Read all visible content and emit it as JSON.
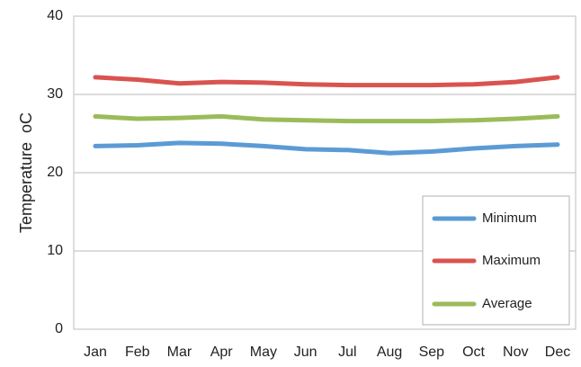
{
  "chart_data": {
    "type": "line",
    "xlabel": "",
    "ylabel": "Temperature",
    "ylabel_unit": "oC",
    "categories": [
      "Jan",
      "Feb",
      "Mar",
      "Apr",
      "May",
      "Jun",
      "Jul",
      "Aug",
      "Sep",
      "Oct",
      "Nov",
      "Dec"
    ],
    "ylim": [
      0,
      40
    ],
    "yticks": [
      "0",
      "10",
      "20",
      "30",
      "40"
    ],
    "grid": {
      "horizontal": true,
      "vertical": false
    },
    "legend_position": "bottom-right",
    "series": [
      {
        "name": "Minimum",
        "color": "#5b9bd5",
        "values": [
          23.4,
          23.5,
          23.8,
          23.7,
          23.4,
          23.0,
          22.9,
          22.5,
          22.7,
          23.1,
          23.4,
          23.6
        ]
      },
      {
        "name": "Maximum",
        "color": "#d9534f",
        "values": [
          32.2,
          31.9,
          31.4,
          31.6,
          31.5,
          31.3,
          31.2,
          31.2,
          31.2,
          31.3,
          31.6,
          32.2
        ]
      },
      {
        "name": "Average",
        "color": "#9bbb59",
        "values": [
          27.2,
          26.9,
          27.0,
          27.2,
          26.8,
          26.7,
          26.6,
          26.6,
          26.6,
          26.7,
          26.9,
          27.2
        ]
      }
    ]
  }
}
